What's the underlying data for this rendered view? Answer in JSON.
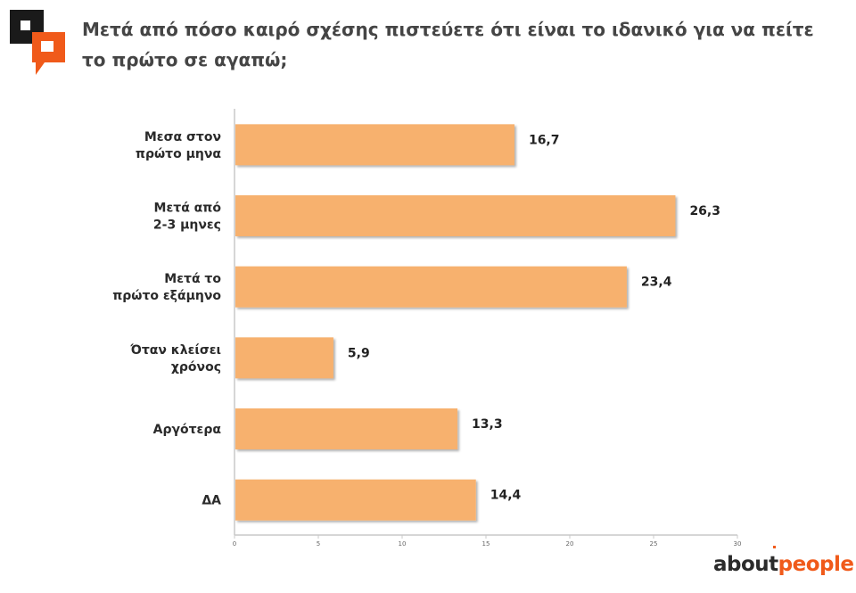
{
  "header": {
    "title": "Μετά από πόσο καιρό σχέσης πιστεύετε ότι είναι το ιδανικό για να πείτε το πρώτο σε αγαπώ;"
  },
  "brand": {
    "part1": "about",
    "part2": "people"
  },
  "colors": {
    "bar": "#F7B16E",
    "accent": "#F05A1A",
    "dark": "#1A1A1A",
    "axis": "#C8C8C8"
  },
  "chart_data": {
    "type": "bar",
    "orientation": "horizontal",
    "categories": [
      "Μεσα στον πρώτο μηνα",
      "Μετά από 2-3 μηνες",
      "Μετά το πρώτο εξάμηνο",
      "Όταν κλείσει χρόνος",
      "Αργότερα",
      "ΔΑ"
    ],
    "values": [
      16.7,
      26.3,
      23.4,
      5.9,
      13.3,
      14.4
    ],
    "value_labels": [
      "16,7",
      "26,3",
      "23,4",
      "5,9",
      "13,3",
      "14,4"
    ],
    "xlim": [
      0,
      30
    ],
    "xticks": [
      "0",
      "5",
      "10",
      "15",
      "20",
      "25",
      "30"
    ],
    "grid": false,
    "legend": "none"
  }
}
